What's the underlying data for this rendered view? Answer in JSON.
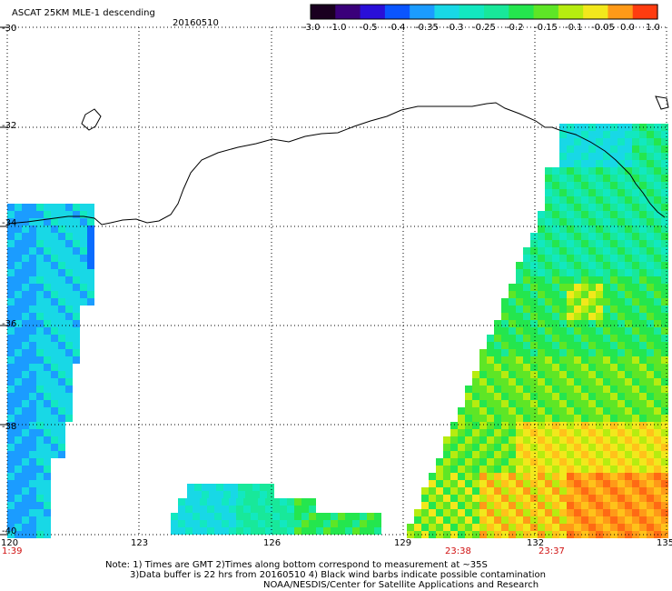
{
  "header": {
    "product_title": "ASCAT 25KM MLE-1 descending",
    "date": "20160510"
  },
  "colorbar": {
    "labels": [
      "-3.0",
      "-1.0",
      "-0.5",
      "-0.4",
      "-0.35",
      "-0.3",
      "-0.25",
      "-0.2",
      "-0.15",
      "-0.1",
      "-0.05",
      "0.0",
      "1.0"
    ],
    "colors": [
      "#1a0020",
      "#3a007a",
      "#2a0fd8",
      "#0a55ff",
      "#1b9cff",
      "#18d8e6",
      "#12e8c0",
      "#18e89a",
      "#24e64e",
      "#5ee626",
      "#b6ec10",
      "#f2e81c",
      "#ff9a18",
      "#ff3c10"
    ]
  },
  "map": {
    "lat_labels": [
      "-30",
      "-32",
      "-34",
      "-36",
      "-38",
      "-40"
    ],
    "lon_labels": [
      "120",
      "123",
      "126",
      "129",
      "132",
      "135"
    ],
    "pass_times": [
      "1:39",
      "23:38",
      "23:37"
    ]
  },
  "footnote": {
    "line1": "Note: 1) Times are GMT 2)Times along bottom correspond to measurement at ~35S",
    "line2": "3)Data buffer is 22 hrs from 20160510 4) Black wind barbs indicate possible contamination",
    "line3": "NOAA/NESDIS/Center for Satellite Applications and Research"
  }
}
